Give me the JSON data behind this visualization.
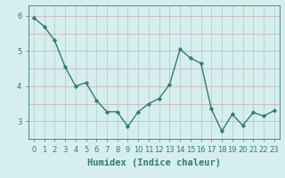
{
  "x": [
    0,
    1,
    2,
    3,
    4,
    5,
    6,
    7,
    8,
    9,
    10,
    11,
    12,
    13,
    14,
    15,
    16,
    17,
    18,
    19,
    20,
    21,
    22,
    23
  ],
  "y": [
    5.95,
    5.7,
    5.3,
    4.55,
    4.0,
    4.1,
    3.6,
    3.27,
    3.27,
    2.85,
    3.27,
    3.5,
    3.65,
    4.05,
    5.05,
    4.8,
    4.65,
    3.35,
    2.72,
    3.2,
    2.88,
    3.25,
    3.15,
    3.3
  ],
  "line_color": "#2e7d72",
  "marker": "D",
  "markersize": 2.2,
  "linewidth": 1.0,
  "xlabel": "Humidex (Indice chaleur)",
  "xlabel_fontsize": 7.5,
  "background_color": "#d6eeee",
  "grid_color": "#b8d4d4",
  "grid_color_minor": "#e8c8c8",
  "ylim": [
    2.5,
    6.3
  ],
  "xlim": [
    -0.5,
    23.5
  ],
  "yticks": [
    3,
    4,
    5,
    6
  ],
  "xticks": [
    0,
    1,
    2,
    3,
    4,
    5,
    6,
    7,
    8,
    9,
    10,
    11,
    12,
    13,
    14,
    15,
    16,
    17,
    18,
    19,
    20,
    21,
    22,
    23
  ],
  "tick_fontsize": 6,
  "tick_color": "#2e7d72"
}
